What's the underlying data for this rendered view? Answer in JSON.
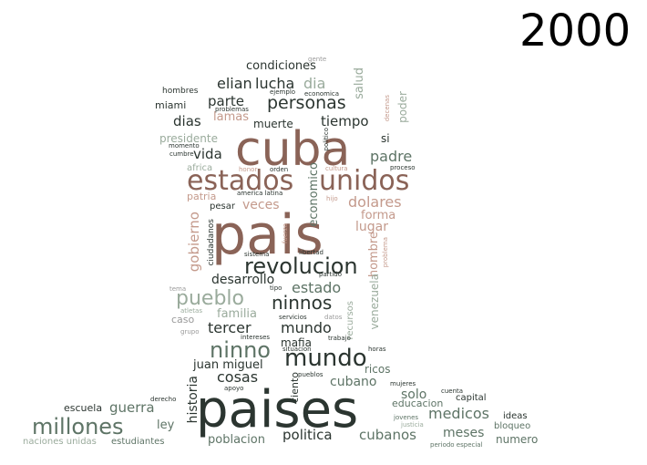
{
  "year": "2000",
  "palette": {
    "dark": "#2b3530",
    "brown": "#8a6357",
    "green": "#5e7466",
    "sage": "#9aab9c",
    "rose": "#c49a8c",
    "gray": "#9a9a9a"
  },
  "words": [
    "paises",
    "pais",
    "cuba",
    "estados",
    "unidos",
    "mundo",
    "revolucion",
    "millones",
    "ninno",
    "pueblo",
    "ninnos",
    "personas",
    "politica",
    "medicos",
    "cubanos",
    "guerra",
    "estado",
    "mundo",
    "tercer",
    "padre",
    "dolares",
    "elian",
    "lucha",
    "condiciones",
    "dia",
    "parte",
    "tiempo",
    "dias",
    "vida",
    "cosas",
    "juan miguel",
    "cubano",
    "solo",
    "meses",
    "poblacion",
    "veces",
    "lugar",
    "forma",
    "gobierno",
    "desarrollo",
    "familia",
    "historia",
    "economico",
    "hombre",
    "salud",
    "poder",
    "lamas",
    "muerte",
    "presidente",
    "si",
    "miami",
    "hombres",
    "venezuela",
    "mafia",
    "ley",
    "ideas",
    "bloqueo",
    "numero",
    "capital",
    "educacion",
    "ricos",
    "escuela",
    "estudiantes",
    "naciones unidas",
    "caso",
    "ciento",
    "pesar",
    "ciudadanos",
    "patria",
    "africa",
    "recursos",
    "problemas",
    "proceso",
    "cultura",
    "america latina",
    "orden",
    "honor",
    "hijo",
    "sistema",
    "libertad",
    "partido",
    "tipo",
    "servicios",
    "datos",
    "intereses",
    "situacion",
    "trabajo",
    "pueblos",
    "mujeres",
    "cuenta",
    "jovenes",
    "justicia",
    "periodo especial",
    "atletas",
    "grupo",
    "tema",
    "apoyo",
    "derecho",
    "horas",
    "momento",
    "cumbre",
    "ejemplo",
    "economica",
    "gente",
    "decenas",
    "fuerza",
    "politico",
    "problema"
  ]
}
